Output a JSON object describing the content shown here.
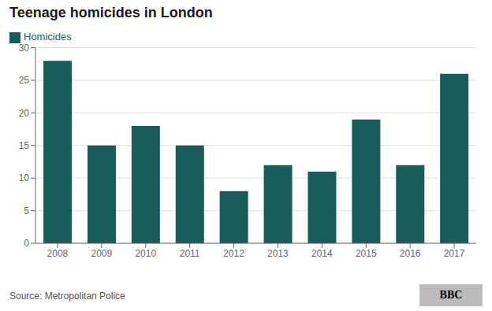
{
  "chart_data": {
    "type": "bar",
    "title": "Teenage homicides in London",
    "categories": [
      "2008",
      "2009",
      "2010",
      "2011",
      "2012",
      "2013",
      "2014",
      "2015",
      "2016",
      "2017"
    ],
    "series": [
      {
        "name": "Homicides",
        "color": "#1a5c5a",
        "values": [
          28,
          15,
          18,
          15,
          8,
          12,
          11,
          19,
          12,
          26
        ]
      }
    ],
    "ylim": [
      0,
      30
    ],
    "yticks": [
      0,
      5,
      10,
      15,
      20,
      25,
      30
    ],
    "grid": true,
    "legend": "top-left",
    "annotations": [
      "Source: Metropolitan Police",
      "BBC"
    ]
  }
}
